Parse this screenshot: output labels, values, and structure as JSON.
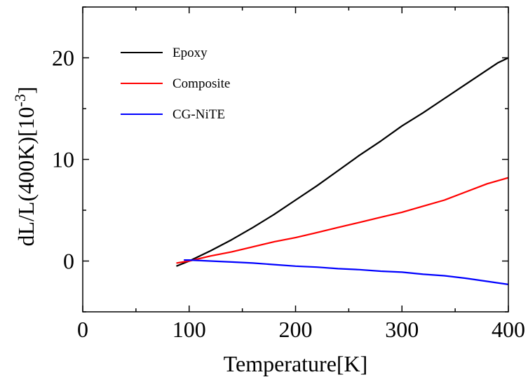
{
  "chart_data": {
    "type": "line",
    "title": "",
    "xlabel": "Temperature[K]",
    "ylabel": {
      "main": "dL/L(400K)[10",
      "exponent": "-3",
      "close": "]"
    },
    "xlim": [
      0,
      400
    ],
    "ylim": [
      -5,
      25
    ],
    "xticks": [
      0,
      100,
      200,
      300,
      400
    ],
    "yticks": [
      0,
      10,
      20
    ],
    "xtick_labels": [
      "0",
      "100",
      "200",
      "300",
      "400"
    ],
    "ytick_labels": [
      "0",
      "10",
      "20"
    ],
    "x_minor_step": 50,
    "y_minor_step": 5,
    "grid": false,
    "legend_position": "top-left",
    "series": [
      {
        "name": "Epoxy",
        "color": "#000000",
        "x": [
          88,
          100,
          120,
          140,
          160,
          180,
          200,
          220,
          240,
          260,
          280,
          300,
          320,
          340,
          360,
          380,
          390,
          400
        ],
        "y": [
          -0.5,
          0.0,
          1.0,
          2.1,
          3.3,
          4.6,
          6.0,
          7.4,
          8.9,
          10.4,
          11.8,
          13.3,
          14.6,
          16.0,
          17.4,
          18.8,
          19.5,
          20.0
        ]
      },
      {
        "name": "Composite",
        "color": "#ff0000",
        "x": [
          88,
          100,
          120,
          140,
          160,
          180,
          200,
          220,
          240,
          260,
          280,
          300,
          320,
          340,
          360,
          380,
          400
        ],
        "y": [
          -0.2,
          0.0,
          0.5,
          0.9,
          1.4,
          1.9,
          2.3,
          2.8,
          3.3,
          3.8,
          4.3,
          4.8,
          5.4,
          6.0,
          6.8,
          7.6,
          8.2
        ]
      },
      {
        "name": "CG-NiTE",
        "color": "#0000ff",
        "x": [
          95,
          100,
          120,
          140,
          160,
          180,
          200,
          220,
          240,
          260,
          280,
          300,
          320,
          340,
          360,
          380,
          400
        ],
        "y": [
          0.1,
          0.1,
          0.0,
          -0.1,
          -0.2,
          -0.35,
          -0.5,
          -0.6,
          -0.75,
          -0.85,
          -1.0,
          -1.1,
          -1.3,
          -1.45,
          -1.7,
          -2.0,
          -2.3
        ]
      }
    ]
  }
}
